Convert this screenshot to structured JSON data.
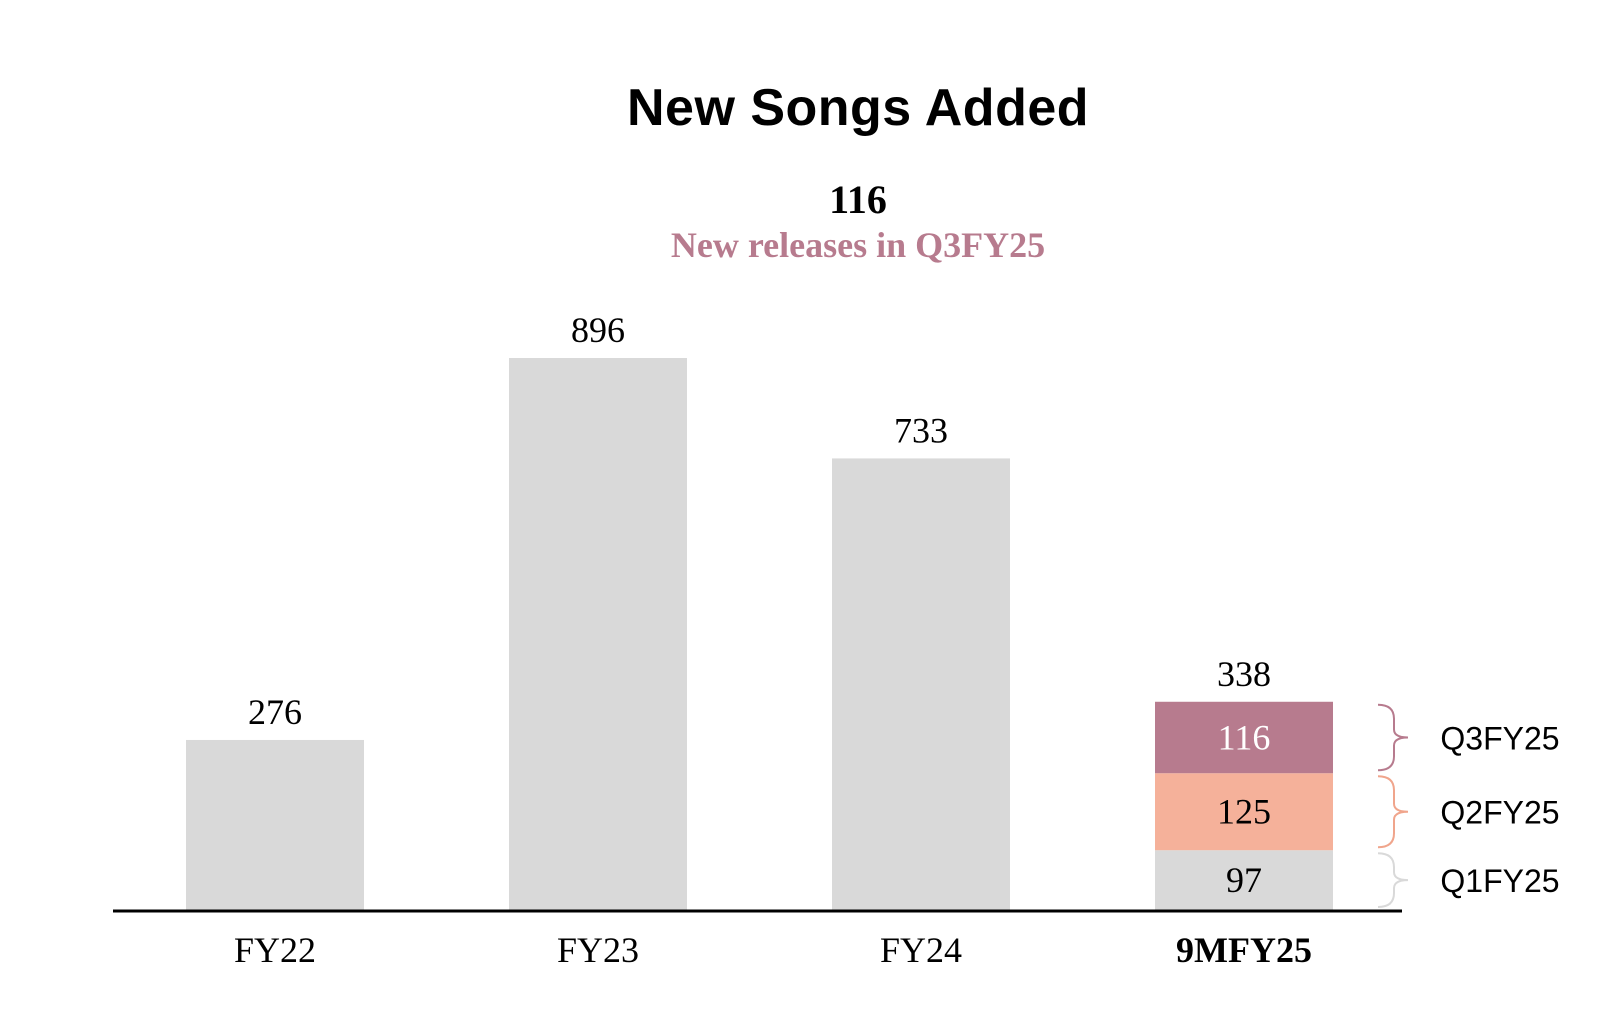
{
  "chart_data": {
    "type": "bar",
    "title": "New Songs Added",
    "headline": {
      "value": "116",
      "caption": "New releases in Q3FY25"
    },
    "categories": [
      "FY22",
      "FY23",
      "FY24",
      "9MFY25"
    ],
    "values": [
      276,
      896,
      733,
      338
    ],
    "totals_labels": [
      "276",
      "896",
      "733",
      "338"
    ],
    "bold_category": "9MFY25",
    "stacked_last": {
      "category": "9MFY25",
      "segments": [
        {
          "name": "Q1FY25",
          "value": 97,
          "label": "97",
          "color": "#d9d9d9",
          "text_color": "#000000",
          "bracket_color": "#d9d9d9"
        },
        {
          "name": "Q2FY25",
          "value": 125,
          "label": "125",
          "color": "#f5b19a",
          "text_color": "#000000",
          "bracket_color": "#f0a58c"
        },
        {
          "name": "Q3FY25",
          "value": 116,
          "label": "116",
          "color": "#b77b8e",
          "text_color": "#ffffff",
          "bracket_color": "#b77b8e"
        }
      ]
    },
    "colors": {
      "bar": "#d9d9d9",
      "accent": "#b77b8e",
      "axis": "#000000"
    },
    "ylim": [
      0,
      896
    ],
    "grid": false
  }
}
